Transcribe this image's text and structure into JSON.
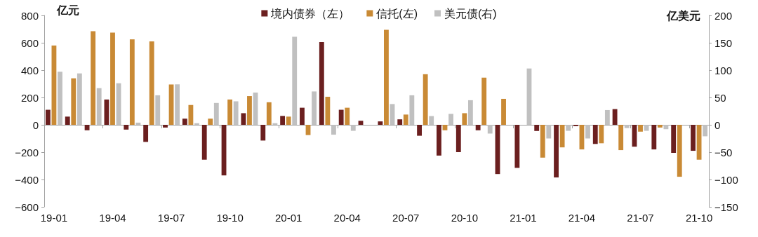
{
  "chart_data": {
    "type": "bar",
    "ylabel": "亿元",
    "y2label": "亿美元",
    "categories": [
      "19-01",
      null,
      null,
      "19-04",
      null,
      null,
      "19-07",
      null,
      null,
      "19-10",
      null,
      null,
      "20-01",
      null,
      null,
      "20-04",
      null,
      null,
      "20-07",
      null,
      null,
      "20-10",
      null,
      null,
      "21-01",
      null,
      null,
      "21-04",
      null,
      null,
      "21-07",
      null,
      null,
      "21-10"
    ],
    "series": [
      {
        "name": "境内债券（左）",
        "color": "#6b1f1f",
        "values": [
          110,
          60,
          -40,
          185,
          -35,
          -125,
          -20,
          45,
          -255,
          -370,
          85,
          -115,
          65,
          125,
          605,
          110,
          30,
          25,
          40,
          -80,
          -225,
          -200,
          -40,
          -360,
          -315,
          -45,
          -385,
          -10,
          -140,
          115,
          -160,
          -180,
          -205,
          -190
        ]
      },
      {
        "name": "信托(左)",
        "color": "#c98a35",
        "values": [
          580,
          340,
          685,
          675,
          625,
          610,
          295,
          145,
          45,
          185,
          210,
          165,
          60,
          -75,
          205,
          125,
          null,
          695,
          75,
          370,
          -40,
          85,
          345,
          190,
          null,
          -240,
          -165,
          -180,
          -135,
          -185,
          -50,
          -20,
          -380,
          -255
        ]
      },
      {
        "name": "美元债(右)",
        "color": "#c0c0c0",
        "axis": "y2",
        "values": [
          97,
          94,
          67,
          76,
          4,
          54,
          74,
          3,
          40,
          43,
          59,
          3,
          161,
          61,
          -18,
          -11,
          null,
          38,
          54,
          16,
          20,
          45,
          -16,
          null,
          103,
          -25,
          -11,
          -25,
          27,
          -6,
          -11,
          -8,
          null,
          -21
        ]
      }
    ],
    "ylim": [
      -600,
      800
    ],
    "yticks": [
      -600,
      -400,
      -200,
      0,
      200,
      400,
      600,
      800
    ],
    "y2lim": [
      -150,
      200
    ],
    "y2ticks": [
      -150,
      -100,
      -50,
      0,
      50,
      100,
      150,
      200
    ],
    "legend": "top"
  }
}
